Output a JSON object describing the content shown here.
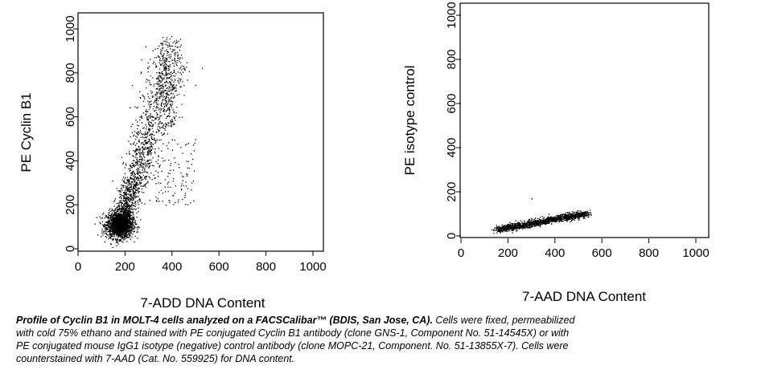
{
  "chart_data": [
    {
      "type": "scatter",
      "title": "",
      "xlabel": "7-ADD DNA Content",
      "ylabel": "PE Cyclin B1",
      "xlim": [
        0,
        1000
      ],
      "ylim": [
        0,
        1000
      ],
      "x_ticks": [
        "0",
        "200",
        "400",
        "600",
        "800",
        "1000"
      ],
      "y_ticks": [
        "0",
        "200",
        "400",
        "600",
        "800",
        "1000"
      ],
      "grid": false,
      "description_points": [
        [
          150,
          80
        ],
        [
          160,
          100
        ],
        [
          170,
          120
        ],
        [
          180,
          110
        ],
        [
          200,
          140
        ],
        [
          210,
          160
        ],
        [
          230,
          180
        ],
        [
          250,
          220
        ],
        [
          270,
          260
        ],
        [
          290,
          300
        ],
        [
          300,
          330
        ],
        [
          320,
          380
        ],
        [
          340,
          420
        ],
        [
          360,
          480
        ],
        [
          370,
          560
        ],
        [
          380,
          640
        ],
        [
          390,
          720
        ],
        [
          400,
          800
        ],
        [
          410,
          880
        ],
        [
          420,
          940
        ],
        [
          350,
          300
        ],
        [
          400,
          450
        ],
        [
          430,
          600
        ],
        [
          250,
          300
        ],
        [
          450,
          700
        ],
        [
          460,
          400
        ],
        [
          490,
          220
        ],
        [
          200,
          120
        ],
        [
          180,
          90
        ],
        [
          140,
          60
        ]
      ]
    },
    {
      "type": "scatter",
      "title": "",
      "xlabel": "7-AAD DNA Content",
      "ylabel": "PE isotype control",
      "xlim": [
        0,
        1000
      ],
      "ylim": [
        0,
        1000
      ],
      "x_ticks": [
        "0",
        "200",
        "400",
        "600",
        "800",
        "1000"
      ],
      "y_ticks": [
        "0",
        "200",
        "400",
        "600",
        "800",
        "1000"
      ],
      "grid": false,
      "description_points": [
        [
          130,
          30
        ],
        [
          160,
          35
        ],
        [
          200,
          45
        ],
        [
          240,
          55
        ],
        [
          280,
          62
        ],
        [
          320,
          70
        ],
        [
          360,
          78
        ],
        [
          400,
          85
        ],
        [
          440,
          92
        ],
        [
          480,
          98
        ],
        [
          520,
          105
        ],
        [
          550,
          108
        ],
        [
          300,
          170
        ]
      ]
    }
  ],
  "caption": {
    "bold": "Profile of Cyclin B1 in MOLT-4 cells analyzed on a FACSCalibar™ (BDIS, San Jose, CA).",
    "line1": " Cells were fixed, permeabilized",
    "line2": "with cold 75% ethano and stained with PE conjugated Cyclin B1 antibody (clone GNS-1, Component No. 51-14545X) or with",
    "line3": "PE conjugated mouse IgG1 isotype (negative) control antibody (clone MOPC-21, Component. No. 51-13855X-7). Cells were",
    "line4": "counterstained with 7-AAD (Cat. No. 559925) for DNA content."
  }
}
